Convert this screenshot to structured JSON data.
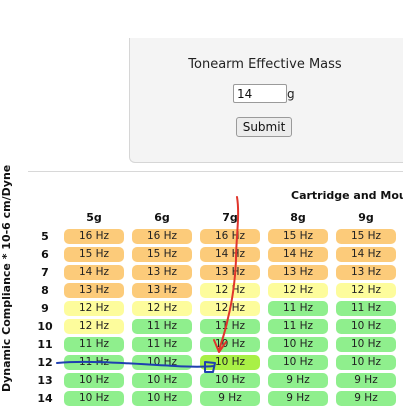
{
  "form": {
    "title": "Tonearm Effective Mass",
    "mass_value": "14",
    "mass_unit": "g",
    "submit_label": "Submit"
  },
  "table": {
    "header": "Cartridge and Mount",
    "y_axis_label": "Dynamic Compliance * 10-6 cm/Dyne",
    "columns": [
      "5g",
      "6g",
      "7g",
      "8g",
      "9g"
    ],
    "rows": [
      {
        "label": "5",
        "cells": [
          {
            "text": "16 Hz",
            "color": "orange"
          },
          {
            "text": "16 Hz",
            "color": "orange"
          },
          {
            "text": "16 Hz",
            "color": "orange"
          },
          {
            "text": "15 Hz",
            "color": "orange"
          },
          {
            "text": "15 Hz",
            "color": "orange"
          }
        ]
      },
      {
        "label": "6",
        "cells": [
          {
            "text": "15 Hz",
            "color": "orange"
          },
          {
            "text": "15 Hz",
            "color": "orange"
          },
          {
            "text": "14 Hz",
            "color": "orange"
          },
          {
            "text": "14 Hz",
            "color": "orange"
          },
          {
            "text": "14 Hz",
            "color": "orange"
          }
        ]
      },
      {
        "label": "7",
        "cells": [
          {
            "text": "14 Hz",
            "color": "orange"
          },
          {
            "text": "13 Hz",
            "color": "orange"
          },
          {
            "text": "13 Hz",
            "color": "orange"
          },
          {
            "text": "13 Hz",
            "color": "orange"
          },
          {
            "text": "13 Hz",
            "color": "orange"
          }
        ]
      },
      {
        "label": "8",
        "cells": [
          {
            "text": "13 Hz",
            "color": "orange"
          },
          {
            "text": "13 Hz",
            "color": "orange"
          },
          {
            "text": "12 Hz",
            "color": "yellow"
          },
          {
            "text": "12 Hz",
            "color": "yellow"
          },
          {
            "text": "12 Hz",
            "color": "yellow"
          }
        ]
      },
      {
        "label": "9",
        "cells": [
          {
            "text": "12 Hz",
            "color": "yellow"
          },
          {
            "text": "12 Hz",
            "color": "yellow"
          },
          {
            "text": "12 Hz",
            "color": "yellow"
          },
          {
            "text": "11 Hz",
            "color": "green"
          },
          {
            "text": "11 Hz",
            "color": "green"
          }
        ]
      },
      {
        "label": "10",
        "cells": [
          {
            "text": "12 Hz",
            "color": "yellow"
          },
          {
            "text": "11 Hz",
            "color": "green"
          },
          {
            "text": "11 Hz",
            "color": "green"
          },
          {
            "text": "11 Hz",
            "color": "green"
          },
          {
            "text": "10 Hz",
            "color": "green"
          }
        ]
      },
      {
        "label": "11",
        "cells": [
          {
            "text": "11 Hz",
            "color": "green"
          },
          {
            "text": "11 Hz",
            "color": "green"
          },
          {
            "text": "10 Hz",
            "color": "green"
          },
          {
            "text": "10 Hz",
            "color": "green"
          },
          {
            "text": "10 Hz",
            "color": "green"
          }
        ]
      },
      {
        "label": "12",
        "cells": [
          {
            "text": "11 Hz",
            "color": "green"
          },
          {
            "text": "10 Hz",
            "color": "green"
          },
          {
            "text": "10 Hz",
            "color": "bright"
          },
          {
            "text": "10 Hz",
            "color": "green"
          },
          {
            "text": "10 Hz",
            "color": "green"
          }
        ]
      },
      {
        "label": "13",
        "cells": [
          {
            "text": "10 Hz",
            "color": "green"
          },
          {
            "text": "10 Hz",
            "color": "green"
          },
          {
            "text": "10 Hz",
            "color": "green"
          },
          {
            "text": "9 Hz",
            "color": "green"
          },
          {
            "text": "9 Hz",
            "color": "green"
          }
        ]
      },
      {
        "label": "14",
        "cells": [
          {
            "text": "10 Hz",
            "color": "green"
          },
          {
            "text": "10 Hz",
            "color": "green"
          },
          {
            "text": "9 Hz",
            "color": "green"
          },
          {
            "text": "9 Hz",
            "color": "green"
          },
          {
            "text": "9 Hz",
            "color": "green"
          }
        ]
      }
    ]
  },
  "colors": {
    "orange": "#fccb7a",
    "yellow": "#fdfc9c",
    "green": "#8fef8d",
    "bright": "#a9f046",
    "annotation_red": "#e0352b",
    "annotation_blue": "#1f3fb0"
  }
}
